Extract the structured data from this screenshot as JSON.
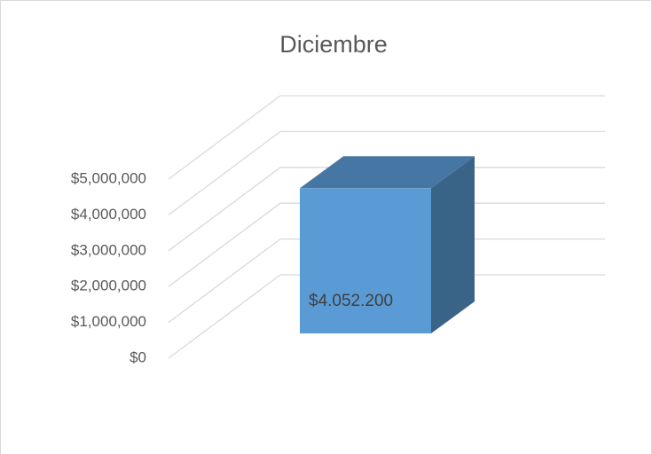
{
  "chart_data": {
    "type": "bar3d",
    "title": "Diciembre",
    "values": [
      4052200
    ],
    "value_labels": [
      "$4.052.200"
    ],
    "colors": {
      "front": "#5b9bd5",
      "top": "#4676a3",
      "side": "#3a6388"
    },
    "ylim": [
      0,
      5000000
    ],
    "yticks": [
      {
        "value": 0,
        "label": "$0"
      },
      {
        "value": 1000000,
        "label": "$1,000,000"
      },
      {
        "value": 2000000,
        "label": "$2,000,000"
      },
      {
        "value": 3000000,
        "label": "$3,000,000"
      },
      {
        "value": 4000000,
        "label": "$4,000,000"
      },
      {
        "value": 5000000,
        "label": "$5,000,000"
      }
    ],
    "grid": true
  }
}
